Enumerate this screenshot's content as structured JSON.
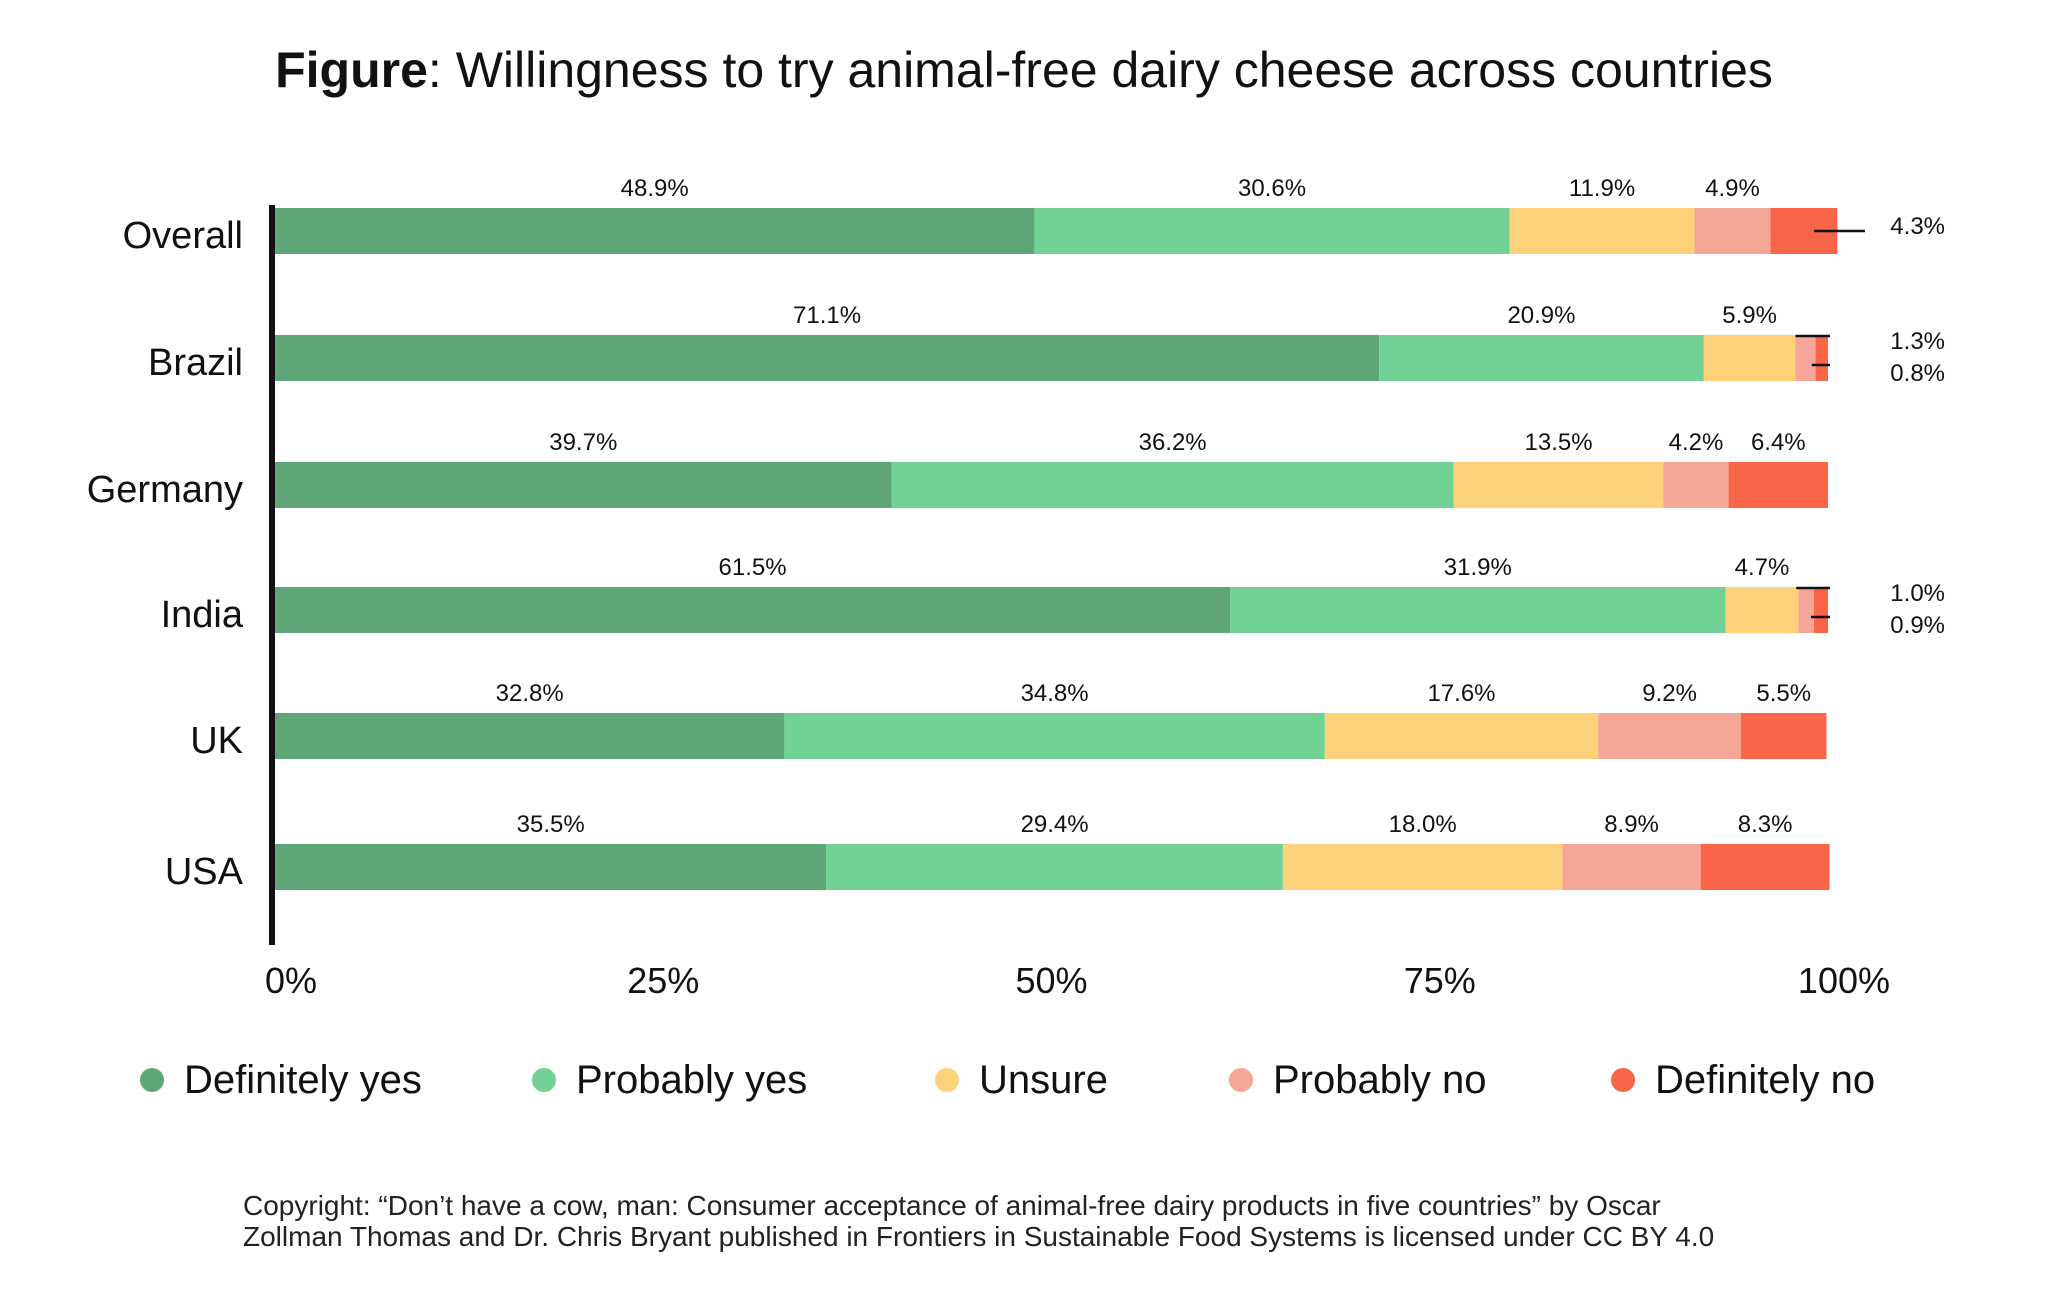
{
  "title_prefix": "Figure",
  "title_rest": ": Willingness to try animal-free dairy cheese across countries",
  "copyright_line1": "Copyright: “Don’t have a cow, man: Consumer acceptance of animal-free dairy products in five countries” by Oscar",
  "copyright_line2": "Zollman Thomas and Dr. Chris Bryant published in Frontiers in Sustainable Food Systems is licensed under CC BY 4.0",
  "chart_data": {
    "type": "bar",
    "orientation": "horizontal",
    "stacked": true,
    "categories": [
      "Overall",
      "Brazil",
      "Germany",
      "India",
      "UK",
      "USA"
    ],
    "series": [
      {
        "name": "Definitely yes",
        "color": "#5ea677",
        "values": [
          48.9,
          71.1,
          39.7,
          61.5,
          32.8,
          35.5
        ]
      },
      {
        "name": "Probably yes",
        "color": "#72d194",
        "values": [
          30.6,
          20.9,
          36.2,
          31.9,
          34.8,
          29.4
        ]
      },
      {
        "name": "Unsure",
        "color": "#fdd27a",
        "values": [
          11.9,
          5.9,
          13.5,
          4.7,
          17.6,
          18.0
        ]
      },
      {
        "name": "Probably no",
        "color": "#f6a696",
        "values": [
          4.9,
          1.3,
          4.2,
          1.0,
          9.2,
          8.9
        ]
      },
      {
        "name": "Definitely no",
        "color": "#f96548",
        "values": [
          4.3,
          0.8,
          6.4,
          0.9,
          5.5,
          8.3
        ]
      }
    ],
    "data_labels": [
      [
        "48.9%",
        "30.6%",
        "11.9%",
        "4.9%",
        "4.3%"
      ],
      [
        "71.1%",
        "20.9%",
        "5.9%",
        "1.3%",
        "0.8%"
      ],
      [
        "39.7%",
        "36.2%",
        "13.5%",
        "4.2%",
        "6.4%"
      ],
      [
        "61.5%",
        "31.9%",
        "4.7%",
        "1.0%",
        "0.9%"
      ],
      [
        "32.8%",
        "34.8%",
        "17.6%",
        "9.2%",
        "5.5%"
      ],
      [
        "35.5%",
        "29.4%",
        "18.0%",
        "8.9%",
        "8.3%"
      ]
    ],
    "x_ticks": [
      "0%",
      "25%",
      "50%",
      "75%",
      "100%"
    ],
    "xlim": [
      0,
      100
    ],
    "xlabel": "",
    "ylabel": "",
    "grid": false,
    "legend_position": "bottom"
  }
}
